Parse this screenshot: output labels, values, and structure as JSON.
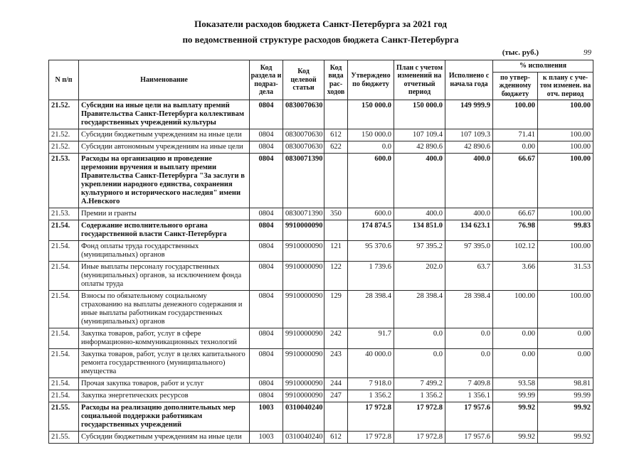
{
  "title": {
    "line1": "Показатели расходов бюджета Санкт-Петербурга за 2021 год",
    "line2": "по ведомственной структуре расходов бюджета Санкт-Петербурга"
  },
  "page": {
    "units_label": "(тыс. руб.)",
    "page_number": "99"
  },
  "table": {
    "headers": {
      "num": "N п/п",
      "name": "Наименование",
      "razdel": "Код раздела и подраз- дела",
      "tselevaya": "Код целевой статьи",
      "vid": "Код вида рас- ходов",
      "utverzhdeno": "Утверждено по бюджету",
      "plan": "План с учетом изменений на отчетный период",
      "ispolneno": "Исполнено с начала года",
      "pct_group": "% исполнения",
      "pct1": "по утвер- жденному бюджету",
      "pct2": "к плану с уче- том изменен. на отч. период"
    },
    "rows": [
      {
        "bold": true,
        "cells": [
          "21.52.",
          "Субсидии на иные цели на выплату премий Правительства Санкт-Петербурга коллективам государственных учреждений культуры",
          "0804",
          "0830070630",
          "",
          "150 000.0",
          "150 000.0",
          "149 999.9",
          "100.00",
          "100.00"
        ]
      },
      {
        "bold": false,
        "cells": [
          "21.52.",
          "Субсидии бюджетным учреждениям на иные цели",
          "0804",
          "0830070630",
          "612",
          "150 000.0",
          "107 109.4",
          "107 109.3",
          "71.41",
          "100.00"
        ]
      },
      {
        "bold": false,
        "cells": [
          "21.52.",
          "Субсидии автономным учреждениям на иные цели",
          "0804",
          "0830070630",
          "622",
          "0.0",
          "42 890.6",
          "42 890.6",
          "0.00",
          "100.00"
        ]
      },
      {
        "bold": true,
        "cells": [
          "21.53.",
          "Расходы на организацию и проведение церемонии вручения и выплату премии Правительства Санкт-Петербурга \"За заслуги в укреплении народного единства, сохранения культурного и исторического наследия\" имени А.Невского",
          "0804",
          "0830071390",
          "",
          "600.0",
          "400.0",
          "400.0",
          "66.67",
          "100.00"
        ]
      },
      {
        "bold": false,
        "cells": [
          "21.53.",
          "Премии и гранты",
          "0804",
          "0830071390",
          "350",
          "600.0",
          "400.0",
          "400.0",
          "66.67",
          "100.00"
        ]
      },
      {
        "bold": true,
        "cells": [
          "21.54.",
          "Содержание исполнительного органа государственной  власти Санкт-Петербурга",
          "0804",
          "9910000090",
          "",
          "174 874.5",
          "134 851.0",
          "134 623.1",
          "76.98",
          "99.83"
        ]
      },
      {
        "bold": false,
        "cells": [
          "21.54.",
          "Фонд оплаты труда государственных (муниципальных) органов",
          "0804",
          "9910000090",
          "121",
          "95 370.6",
          "97 395.2",
          "97 395.0",
          "102.12",
          "100.00"
        ]
      },
      {
        "bold": false,
        "cells": [
          "21.54.",
          "Иные выплаты персоналу государственных (муниципальных) органов, за исключением фонда оплаты труда",
          "0804",
          "9910000090",
          "122",
          "1 739.6",
          "202.0",
          "63.7",
          "3.66",
          "31.53"
        ]
      },
      {
        "bold": false,
        "cells": [
          "21.54.",
          "Взносы по обязательному социальному страхованию на выплаты денежного содержания и иные выплаты работникам государственных (муниципальных) органов",
          "0804",
          "9910000090",
          "129",
          "28 398.4",
          "28 398.4",
          "28 398.4",
          "100.00",
          "100.00"
        ]
      },
      {
        "bold": false,
        "cells": [
          "21.54.",
          "Закупка товаров, работ, услуг в сфере информационно-коммуникационных технологий",
          "0804",
          "9910000090",
          "242",
          "91.7",
          "0.0",
          "0.0",
          "0.00",
          "0.00"
        ]
      },
      {
        "bold": false,
        "cells": [
          "21.54.",
          "Закупка товаров, работ, услуг в целях капитального ремонта государственного (муниципального) имущества",
          "0804",
          "9910000090",
          "243",
          "40 000.0",
          "0.0",
          "0.0",
          "0.00",
          "0.00"
        ]
      },
      {
        "bold": false,
        "cells": [
          "21.54.",
          "Прочая закупка товаров, работ и услуг",
          "0804",
          "9910000090",
          "244",
          "7 918.0",
          "7 499.2",
          "7 409.8",
          "93.58",
          "98.81"
        ]
      },
      {
        "bold": false,
        "cells": [
          "21.54.",
          "Закупка энергетических ресурсов",
          "0804",
          "9910000090",
          "247",
          "1 356.2",
          "1 356.2",
          "1 356.1",
          "99.99",
          "99.99"
        ]
      },
      {
        "bold": true,
        "cells": [
          "21.55.",
          "Расходы на реализацию дополнительных мер социальной поддержки работникам государственных учреждений",
          "1003",
          "0310040240",
          "",
          "17 972.8",
          "17 972.8",
          "17 957.6",
          "99.92",
          "99.92"
        ]
      },
      {
        "bold": false,
        "cells": [
          "21.55.",
          "Субсидии бюджетным учреждениям на иные цели",
          "1003",
          "0310040240",
          "612",
          "17 972.8",
          "17 972.8",
          "17 957.6",
          "99.92",
          "99.92"
        ]
      }
    ]
  }
}
